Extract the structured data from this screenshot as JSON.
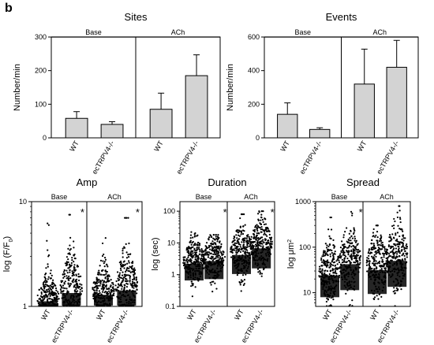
{
  "panel_letter": "b",
  "chart_data": [
    {
      "type": "bar",
      "title": "Sites",
      "ylabel": "Number/min",
      "yscale": "linear",
      "ylim": [
        0,
        300
      ],
      "yticks": [
        0,
        100,
        200,
        300
      ],
      "groups": [
        "Base",
        "ACh"
      ],
      "categories": [
        "WT",
        "ecTRPV4-/-"
      ],
      "series": [
        {
          "group": "Base",
          "values": [
            58,
            40
          ],
          "error": [
            20,
            8
          ]
        },
        {
          "group": "ACh",
          "values": [
            85,
            185
          ],
          "error": [
            48,
            62
          ]
        }
      ],
      "bar_color": "#d3d3d3"
    },
    {
      "type": "bar",
      "title": "Events",
      "ylabel": "Number/min",
      "yscale": "linear",
      "ylim": [
        0,
        600
      ],
      "yticks": [
        0,
        200,
        400,
        600
      ],
      "groups": [
        "Base",
        "ACh"
      ],
      "categories": [
        "WT",
        "ecTRPV4-/-"
      ],
      "series": [
        {
          "group": "Base",
          "values": [
            140,
            50
          ],
          "error": [
            68,
            10
          ]
        },
        {
          "group": "ACh",
          "values": [
            320,
            420
          ],
          "error": [
            208,
            160
          ]
        }
      ],
      "bar_color": "#d3d3d3"
    },
    {
      "type": "scatter",
      "title": "Amp",
      "ylabel": "log (F/F",
      "ylabel_sub": "0",
      "ylabel_end": ")",
      "yscale": "log",
      "ylim": [
        1,
        10
      ],
      "yticks": [
        1,
        10
      ],
      "groups": [
        "Base",
        "ACh"
      ],
      "categories": [
        "WT",
        "ecTRPV4-/-"
      ],
      "distributions": [
        {
          "group": "Base",
          "category": "WT",
          "median": 1.2,
          "spread": 0.1,
          "max": 6.2
        },
        {
          "group": "Base",
          "category": "ecTRPV4-/-",
          "median": 1.5,
          "spread": 0.16,
          "max": 7.5
        },
        {
          "group": "ACh",
          "category": "WT",
          "median": 1.4,
          "spread": 0.12,
          "max": 4.5
        },
        {
          "group": "ACh",
          "category": "ecTRPV4-/-",
          "median": 1.6,
          "spread": 0.17,
          "max": 7.0
        }
      ],
      "significance": [
        {
          "group": "Base",
          "category": "ecTRPV4-/-",
          "mark": "*"
        },
        {
          "group": "ACh",
          "category": "ecTRPV4-/-",
          "mark": "*"
        }
      ]
    },
    {
      "type": "scatter",
      "title": "Duration",
      "ylabel": "log (sec)",
      "yscale": "log",
      "ylim": [
        0.1,
        200
      ],
      "yticks": [
        0.1,
        1,
        10,
        100
      ],
      "groups": [
        "Base",
        "ACh"
      ],
      "categories": [
        "WT",
        "ecTRPV4-/-"
      ],
      "distributions": [
        {
          "group": "Base",
          "category": "WT",
          "median": 2.8,
          "spread": 0.35,
          "max": 22
        },
        {
          "group": "Base",
          "category": "ecTRPV4-/-",
          "median": 3.5,
          "spread": 0.38,
          "max": 18
        },
        {
          "group": "ACh",
          "category": "WT",
          "median": 5.5,
          "spread": 0.4,
          "max": 80
        },
        {
          "group": "ACh",
          "category": "ecTRPV4-/-",
          "median": 9.0,
          "spread": 0.42,
          "max": 100
        }
      ],
      "significance": [
        {
          "group": "Base",
          "category": "ecTRPV4-/-",
          "mark": "*"
        },
        {
          "group": "ACh",
          "category": "ecTRPV4-/-",
          "mark": "*"
        }
      ]
    },
    {
      "type": "scatter",
      "title": "Spread",
      "ylabel": "log μm",
      "ylabel_sup": "2",
      "yscale": "log",
      "ylim": [
        5,
        1000
      ],
      "yticks": [
        10,
        100,
        1000
      ],
      "groups": [
        "Base",
        "ACh"
      ],
      "categories": [
        "WT",
        "ecTRPV4-/-"
      ],
      "distributions": [
        {
          "group": "Base",
          "category": "WT",
          "median": 30,
          "spread": 0.32,
          "max": 450
        },
        {
          "group": "Base",
          "category": "ecTRPV4-/-",
          "median": 55,
          "spread": 0.38,
          "max": 600
        },
        {
          "group": "ACh",
          "category": "WT",
          "median": 40,
          "spread": 0.35,
          "max": 300
        },
        {
          "group": "ACh",
          "category": "ecTRPV4-/-",
          "median": 65,
          "spread": 0.38,
          "max": 800
        }
      ],
      "significance": [
        {
          "group": "Base",
          "category": "ecTRPV4-/-",
          "mark": "*"
        }
      ]
    }
  ]
}
